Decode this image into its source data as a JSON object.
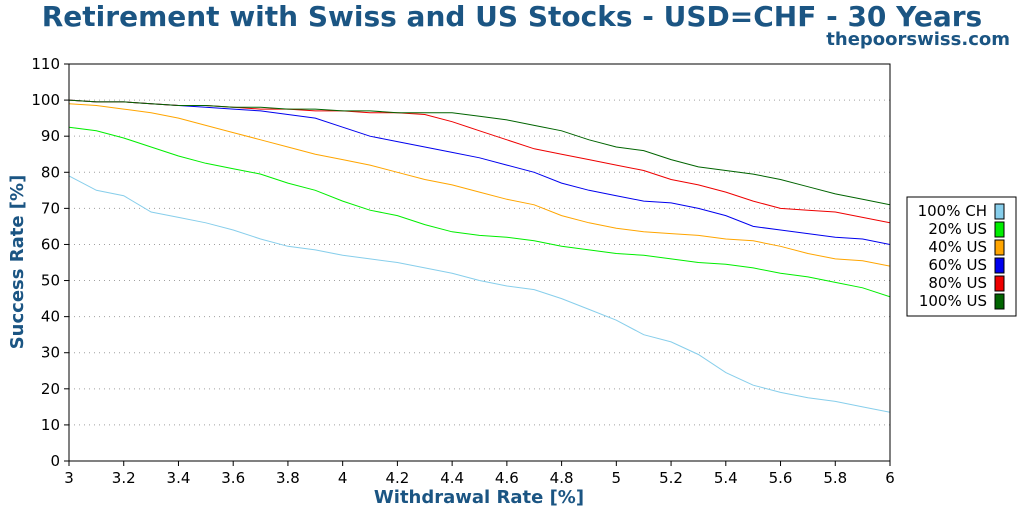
{
  "header": {
    "title": "Retirement with Swiss and US Stocks - USD=CHF - 30 Years",
    "subtitle": "thepoorswiss.com"
  },
  "chart_data": {
    "type": "line",
    "xlabel": "Withdrawal Rate [%]",
    "ylabel": "Success Rate [%]",
    "xlim": [
      3,
      6
    ],
    "ylim": [
      0,
      110
    ],
    "x_ticks": [
      "3",
      "3.2",
      "3.4",
      "3.6",
      "3.8",
      "4",
      "4.2",
      "4.4",
      "4.6",
      "4.8",
      "5",
      "5.2",
      "5.4",
      "5.6",
      "5.8",
      "6"
    ],
    "y_ticks": [
      "0",
      "10",
      "20",
      "30",
      "40",
      "50",
      "60",
      "70",
      "80",
      "90",
      "100",
      "110"
    ],
    "grid": "horizontal-dotted",
    "legend_position": "right",
    "x": [
      3.0,
      3.1,
      3.2,
      3.3,
      3.4,
      3.5,
      3.6,
      3.7,
      3.8,
      3.9,
      4.0,
      4.1,
      4.2,
      4.3,
      4.4,
      4.5,
      4.6,
      4.7,
      4.8,
      4.9,
      5.0,
      5.1,
      5.2,
      5.3,
      5.4,
      5.5,
      5.6,
      5.7,
      5.8,
      5.9,
      6.0
    ],
    "series": [
      {
        "name": "100% CH",
        "color": "#87ceeb",
        "values": [
          79,
          75,
          73.5,
          69,
          67.5,
          66,
          64,
          61.5,
          59.5,
          58.5,
          57,
          56,
          55,
          53.5,
          52,
          50,
          48.5,
          47.5,
          45,
          42,
          39,
          35,
          33,
          29.5,
          24.5,
          21,
          19,
          17.5,
          16.5,
          15,
          13.5
        ]
      },
      {
        "name": "20% US",
        "color": "#00ee00",
        "values": [
          92.5,
          91.5,
          89.5,
          87,
          84.5,
          82.5,
          81,
          79.5,
          77,
          75,
          72,
          69.5,
          68,
          65.5,
          63.5,
          62.5,
          62,
          61,
          59.5,
          58.5,
          57.5,
          57,
          56,
          55,
          54.5,
          53.5,
          52,
          51,
          49.5,
          48,
          45.5
        ]
      },
      {
        "name": "40% US",
        "color": "#ffa500",
        "values": [
          99,
          98.5,
          97.5,
          96.5,
          95,
          93,
          91,
          89,
          87,
          85,
          83.5,
          82,
          80,
          78,
          76.5,
          74.5,
          72.5,
          71,
          68,
          66,
          64.5,
          63.5,
          63,
          62.5,
          61.5,
          61,
          59.5,
          57.5,
          56,
          55.5,
          54
        ]
      },
      {
        "name": "60% US",
        "color": "#0000ee",
        "values": [
          100,
          99.5,
          99.5,
          99,
          98.5,
          98,
          97.5,
          97,
          96,
          95,
          92.5,
          90,
          88.5,
          87,
          85.5,
          84,
          82,
          80,
          77,
          75,
          73.5,
          72,
          71.5,
          70,
          68,
          65,
          64,
          63,
          62,
          61.5,
          60
        ]
      },
      {
        "name": "80% US",
        "color": "#ee0000",
        "values": [
          100,
          99.5,
          99.5,
          99,
          98.5,
          98.5,
          98,
          97.5,
          97.5,
          97,
          97,
          96.5,
          96.5,
          96,
          94,
          91.5,
          89,
          86.5,
          85,
          83.5,
          82,
          80.5,
          78,
          76.5,
          74.5,
          72,
          70,
          69.5,
          69,
          67.5,
          66
        ]
      },
      {
        "name": "100% US",
        "color": "#006400",
        "values": [
          100,
          99.5,
          99.5,
          99,
          98.5,
          98.5,
          98,
          98,
          97.5,
          97.5,
          97,
          97,
          96.5,
          96.5,
          96.5,
          95.5,
          94.5,
          93,
          91.5,
          89,
          87,
          86,
          83.5,
          81.5,
          80.5,
          79.5,
          78,
          76,
          74,
          72.5,
          71
        ]
      }
    ]
  }
}
